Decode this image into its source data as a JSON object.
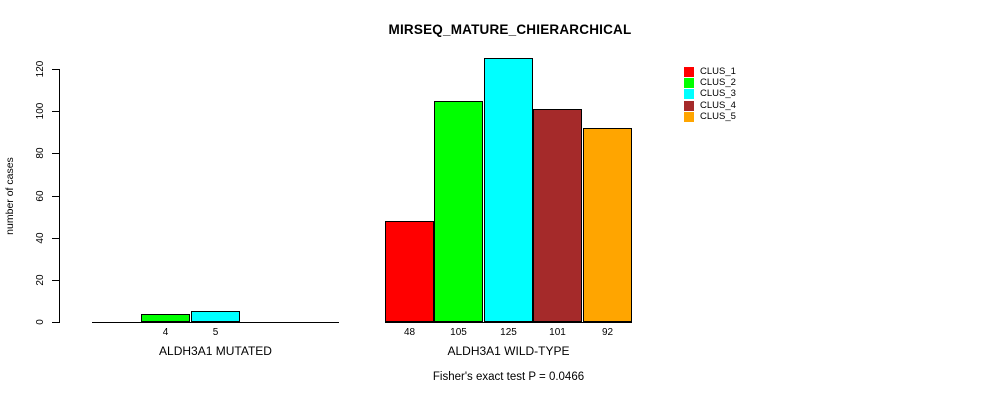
{
  "chart_data": {
    "type": "bar",
    "title": "MIRSEQ_MATURE_CHIERARCHICAL",
    "ylabel": "number of cases",
    "xlabel": "",
    "categories": [
      "ALDH3A1 MUTATED",
      "ALDH3A1 WILD-TYPE"
    ],
    "series": [
      {
        "name": "CLUS_1",
        "color": "#FF0000",
        "values": [
          0,
          48
        ]
      },
      {
        "name": "CLUS_2",
        "color": "#00FF00",
        "values": [
          4,
          105
        ]
      },
      {
        "name": "CLUS_3",
        "color": "#00FFFF",
        "values": [
          5,
          125
        ]
      },
      {
        "name": "CLUS_4",
        "color": "#A52A2A",
        "values": [
          0,
          101
        ]
      },
      {
        "name": "CLUS_5",
        "color": "#FFA500",
        "values": [
          0,
          92
        ]
      }
    ],
    "y_ticks": [
      0,
      20,
      40,
      60,
      80,
      100,
      120
    ],
    "ylim": [
      0,
      125
    ],
    "grid": false,
    "legend_position": "top-right",
    "bar_value_labels_shown": true,
    "annotation": "Fisher's exact test P = 0.0466"
  }
}
